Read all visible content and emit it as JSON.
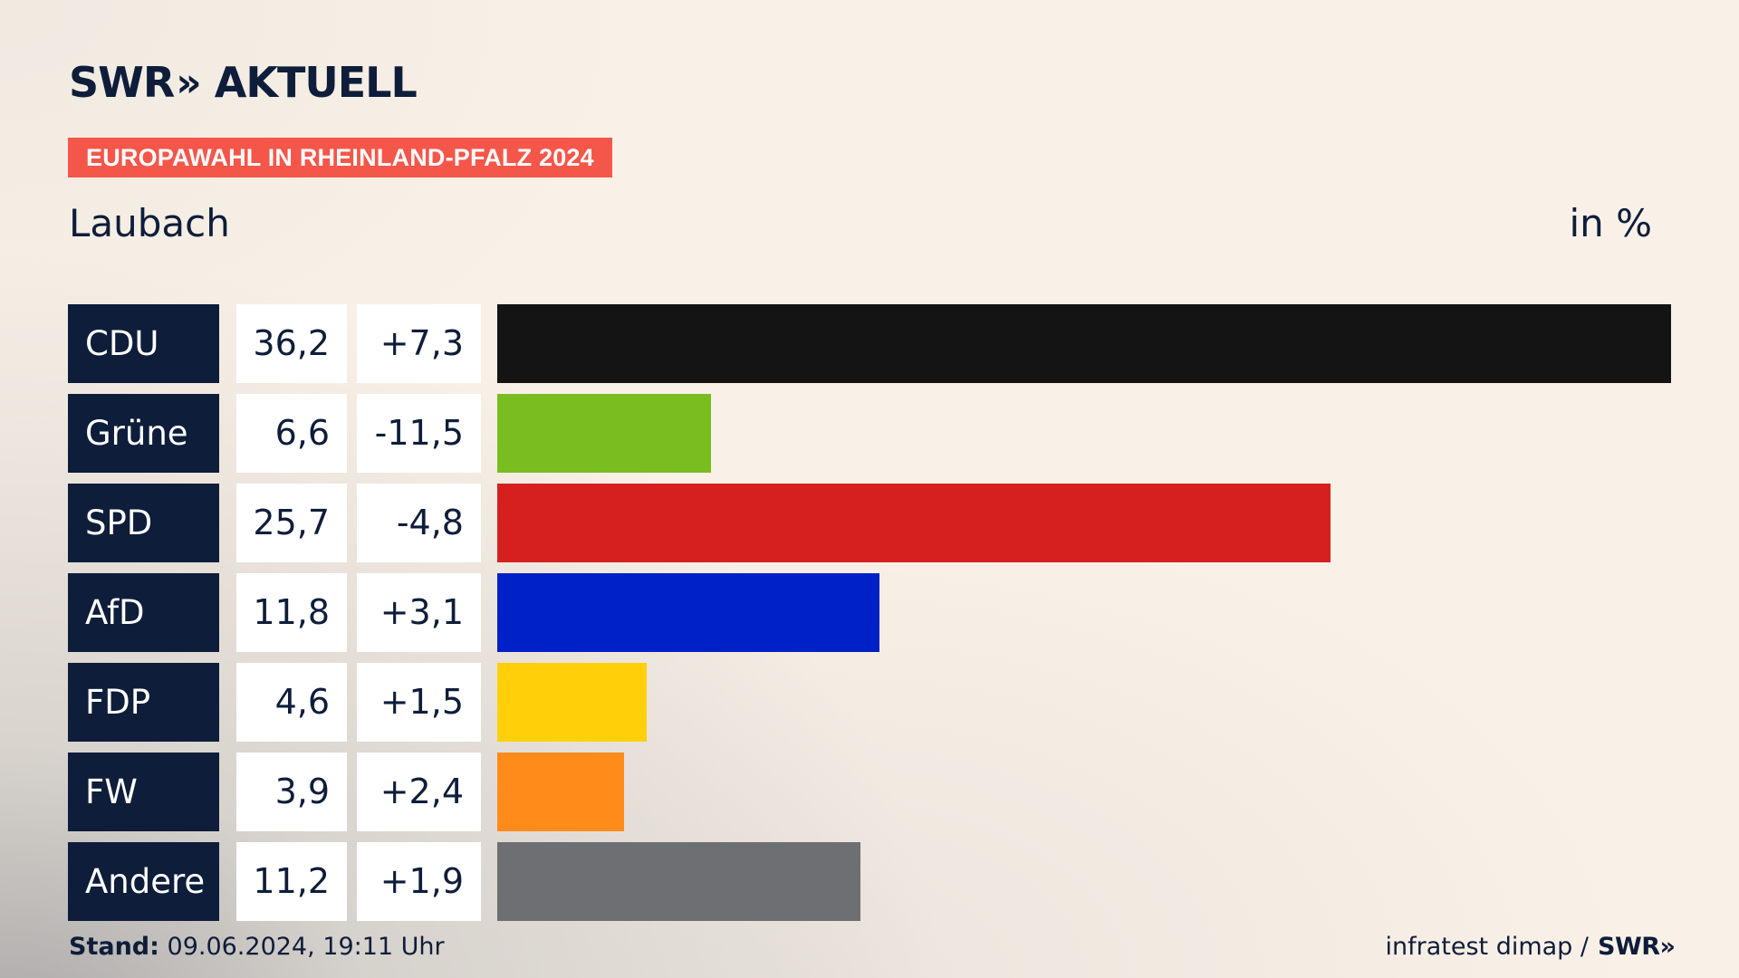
{
  "header": {
    "logo_brand": "SWR",
    "logo_chevrons": "»",
    "logo_product": "AKTUELL",
    "badge": "EUROPAWAHL IN RHEINLAND-PFALZ 2024",
    "place": "Laubach",
    "unit": "in %"
  },
  "chart_data": {
    "type": "bar",
    "orientation": "horizontal",
    "title": "EUROPAWAHL IN RHEINLAND-PFALZ 2024",
    "subtitle": "Laubach",
    "unit": "in %",
    "categories": [
      "CDU",
      "Grüne",
      "SPD",
      "AfD",
      "FDP",
      "FW",
      "Andere"
    ],
    "values": [
      36.2,
      6.6,
      25.7,
      11.8,
      4.6,
      3.9,
      11.2
    ],
    "value_labels": [
      "36,2",
      "6,6",
      "25,7",
      "11,8",
      "4,6",
      "3,9",
      "11,2"
    ],
    "change_labels": [
      "+7,3",
      "-11,5",
      "-4,8",
      "+3,1",
      "+1,5",
      "+2,4",
      "+1,9"
    ],
    "colors": [
      "#141414",
      "#7abd1e",
      "#d62020",
      "#0021c8",
      "#ffd00a",
      "#ff8c1a",
      "#6e6f72"
    ],
    "xlim": [
      0,
      36.2
    ],
    "grid": false,
    "legend": "none"
  },
  "footer": {
    "stand_label": "Stand:",
    "stand_value": "09.06.2024, 19:11 Uhr",
    "source": "infratest dimap /",
    "source_brand": "SWR",
    "source_chevrons": "»"
  }
}
